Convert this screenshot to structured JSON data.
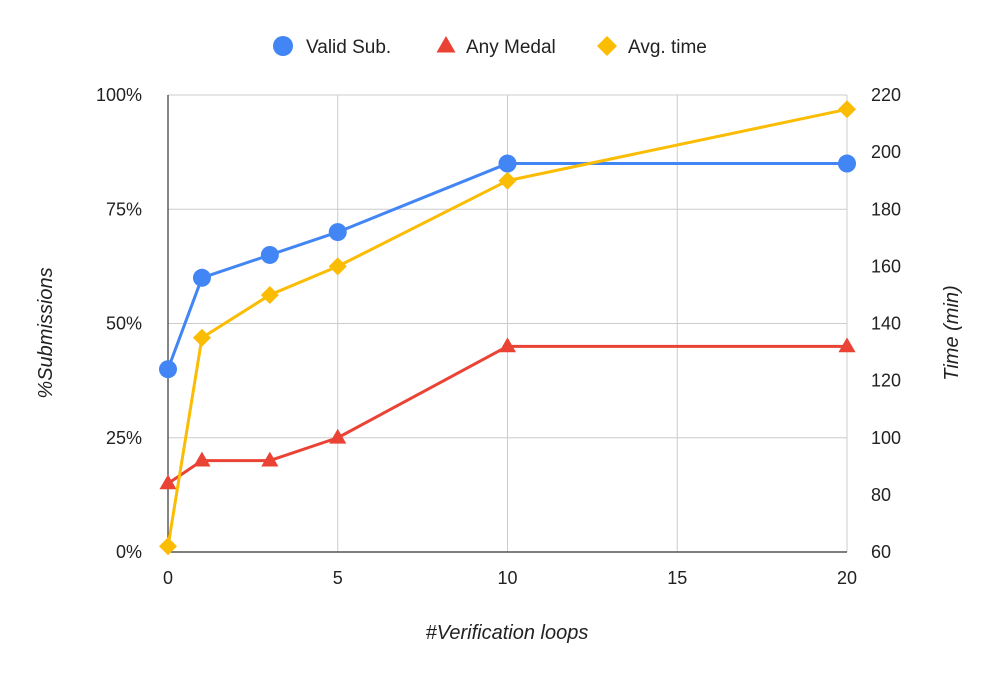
{
  "chart_data": {
    "type": "line",
    "x": [
      0,
      1,
      3,
      5,
      10,
      20
    ],
    "xlabel": "#Verification loops",
    "ylabel_left": "%Submissions",
    "ylabel_right": "Time (min)",
    "xlim": [
      0,
      20
    ],
    "ylim_left": [
      0,
      100
    ],
    "ylim_right": [
      60,
      220
    ],
    "x_ticks": [
      "0",
      "5",
      "10",
      "15",
      "20"
    ],
    "x_tick_values": [
      0,
      5,
      10,
      15,
      20
    ],
    "y_left_ticks": [
      "0%",
      "25%",
      "50%",
      "75%",
      "100%"
    ],
    "y_left_tick_values": [
      0,
      25,
      50,
      75,
      100
    ],
    "y_right_ticks": [
      "60",
      "80",
      "100",
      "120",
      "140",
      "160",
      "180",
      "200",
      "220"
    ],
    "y_right_tick_values": [
      60,
      80,
      100,
      120,
      140,
      160,
      180,
      200,
      220
    ],
    "grid": true,
    "legend_position": "top",
    "series": [
      {
        "name": "Valid Sub.",
        "axis": "left",
        "color": "#4285F4",
        "marker": "circle",
        "values": [
          40,
          60,
          65,
          70,
          85,
          85
        ]
      },
      {
        "name": "Any Medal",
        "axis": "left",
        "color": "#EA4335",
        "marker": "triangle",
        "values": [
          15,
          20,
          20,
          25,
          45,
          45
        ]
      },
      {
        "name": "Avg. time",
        "axis": "right",
        "color": "#FBBC04",
        "marker": "diamond",
        "values": [
          62,
          135,
          150,
          160,
          190,
          215
        ]
      }
    ]
  }
}
